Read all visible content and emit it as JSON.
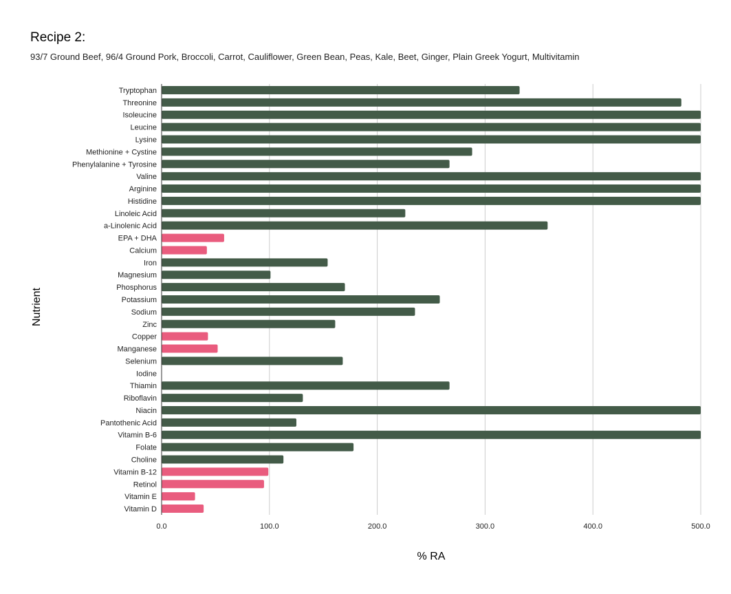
{
  "chart_data": {
    "type": "bar",
    "orientation": "horizontal",
    "title": "Recipe 2:",
    "subtitle": "93/7 Ground Beef, 96/4 Ground Pork, Broccoli, Carrot, Cauliflower, Green Bean, Peas, Kale, Beet, Ginger, Plain Greek Yogurt, Multivitamin",
    "xlabel": "% RA",
    "ylabel": "Nutrient",
    "xlim": [
      0,
      500
    ],
    "xticks": [
      "0.0",
      "100.0",
      "200.0",
      "300.0",
      "400.0",
      "500.0"
    ],
    "grid": true,
    "categories": [
      "Tryptophan",
      "Threonine",
      "Isoleucine",
      "Leucine",
      "Lysine",
      "Methionine + Cystine",
      "Phenylalanine + Tyrosine",
      "Valine",
      "Arginine",
      "Histidine",
      "Linoleic Acid",
      "a-Linolenic Acid",
      "EPA + DHA",
      "Calcium",
      "Iron",
      "Magnesium",
      "Phosphorus",
      "Potassium",
      "Sodium",
      "Zinc",
      "Copper",
      "Manganese",
      "Selenium",
      "Iodine",
      "Thiamin",
      "Riboflavin",
      "Niacin",
      "Pantothenic Acid",
      "Vitamin B-6",
      "Folate",
      "Choline",
      "Vitamin B-12",
      "Retinol",
      "Vitamin E",
      "Vitamin D"
    ],
    "values": [
      332,
      482,
      500,
      500,
      500,
      288,
      267,
      500,
      500,
      500,
      226,
      358,
      58,
      42,
      154,
      101,
      170,
      258,
      235,
      161,
      43,
      52,
      168,
      0,
      267,
      131,
      500,
      125,
      500,
      178,
      113,
      99,
      95,
      31,
      39
    ],
    "colors": {
      "sufficient": "#435b48",
      "deficient": "#e95c7e"
    },
    "deficient_threshold": 100
  }
}
